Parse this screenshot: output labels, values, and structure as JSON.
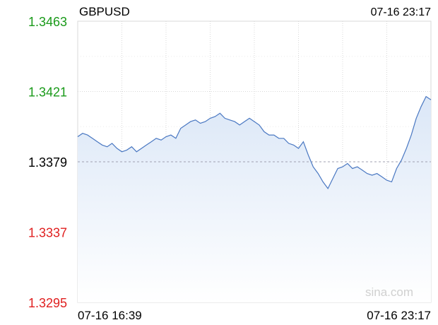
{
  "header": {
    "symbol": "GBPUSD",
    "timestamp": "07-16 23:17"
  },
  "watermark": "sina.com",
  "colors": {
    "line": "#4a78c2",
    "fill_top": "#dbe7f7",
    "fill_bottom": "#ffffff",
    "up": "#1a9a1a",
    "down": "#e02020",
    "neutral": "#000000",
    "grid": "#d8d8d8",
    "baseline": "#a0a0b0",
    "watermark": "#d0d0d0"
  },
  "chart_data": {
    "type": "area",
    "title": "GBPUSD",
    "xlabel": "",
    "ylabel": "",
    "x_tick_labels": [
      "07-16 16:39",
      "07-16 23:17"
    ],
    "y_tick_labels": [
      "1.3463",
      "1.3421",
      "1.3379",
      "1.3337",
      "1.3295"
    ],
    "y_ticks": [
      1.3463,
      1.3421,
      1.3379,
      1.3337,
      1.3295
    ],
    "ylim": [
      1.3295,
      1.3463
    ],
    "prev_close": 1.3379,
    "grid": true,
    "series": [
      {
        "values": [
          1.3394,
          1.3396,
          1.3395,
          1.3393,
          1.3391,
          1.3389,
          1.3388,
          1.339,
          1.3387,
          1.3385,
          1.3386,
          1.3388,
          1.3385,
          1.3387,
          1.3389,
          1.3391,
          1.3393,
          1.3392,
          1.3394,
          1.3395,
          1.3393,
          1.3399,
          1.3401,
          1.3403,
          1.3404,
          1.3402,
          1.3403,
          1.3405,
          1.3406,
          1.3408,
          1.3405,
          1.3404,
          1.3403,
          1.3401,
          1.3403,
          1.3405,
          1.3403,
          1.3401,
          1.3397,
          1.3395,
          1.3395,
          1.3393,
          1.3393,
          1.339,
          1.3389,
          1.3387,
          1.3391,
          1.3383,
          1.3376,
          1.3372,
          1.3367,
          1.3363,
          1.3369,
          1.3375,
          1.3376,
          1.3378,
          1.3375,
          1.3376,
          1.3374,
          1.3372,
          1.3371,
          1.3372,
          1.337,
          1.3368,
          1.3367,
          1.3375,
          1.338,
          1.3387,
          1.3395,
          1.3405,
          1.3412,
          1.3418,
          1.3416
        ]
      }
    ]
  }
}
